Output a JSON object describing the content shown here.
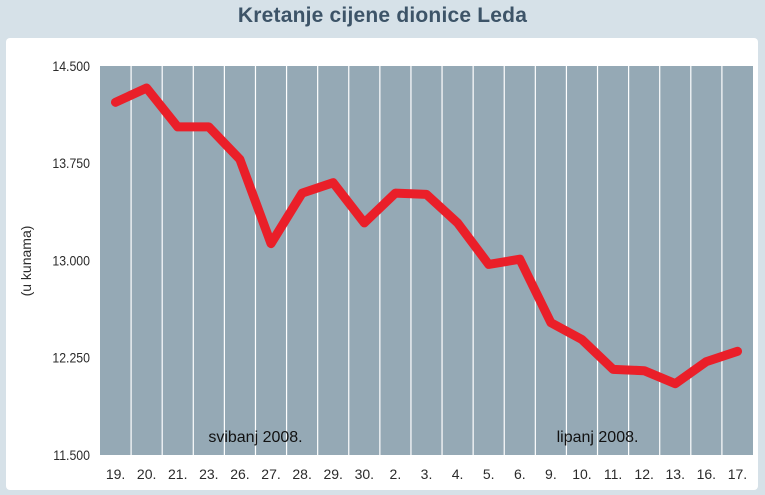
{
  "chart_data": {
    "type": "line",
    "title": "Kretanje cijene dionice Leda",
    "ylabel": "(u kunama)",
    "ylim": [
      11500,
      14500
    ],
    "yticks": [
      14500,
      13750,
      13000,
      12250,
      11500
    ],
    "ytick_labels": [
      "14.500",
      "13.750",
      "13.000",
      "12.250",
      "11.500"
    ],
    "categories": [
      "19.",
      "20.",
      "21.",
      "23.",
      "26.",
      "27.",
      "28.",
      "29.",
      "30.",
      "2.",
      "3.",
      "4.",
      "5.",
      "6.",
      "9.",
      "10.",
      "11.",
      "12.",
      "13.",
      "16.",
      "17."
    ],
    "series": [
      {
        "values": [
          14220,
          14330,
          14030,
          14030,
          13780,
          13130,
          13520,
          13600,
          13290,
          13520,
          13510,
          13290,
          12970,
          13010,
          12520,
          12390,
          12160,
          12150,
          12050,
          12220,
          12300
        ]
      }
    ],
    "annotations": [
      "svibanj 2008.",
      "lipanj 2008."
    ],
    "grid": true,
    "colors": {
      "line": "#ea1f29",
      "plot_bg": "#95a9b5",
      "grid": "#ffffff",
      "page_bg": "#d6e1e8",
      "title": "#3d5468"
    }
  }
}
